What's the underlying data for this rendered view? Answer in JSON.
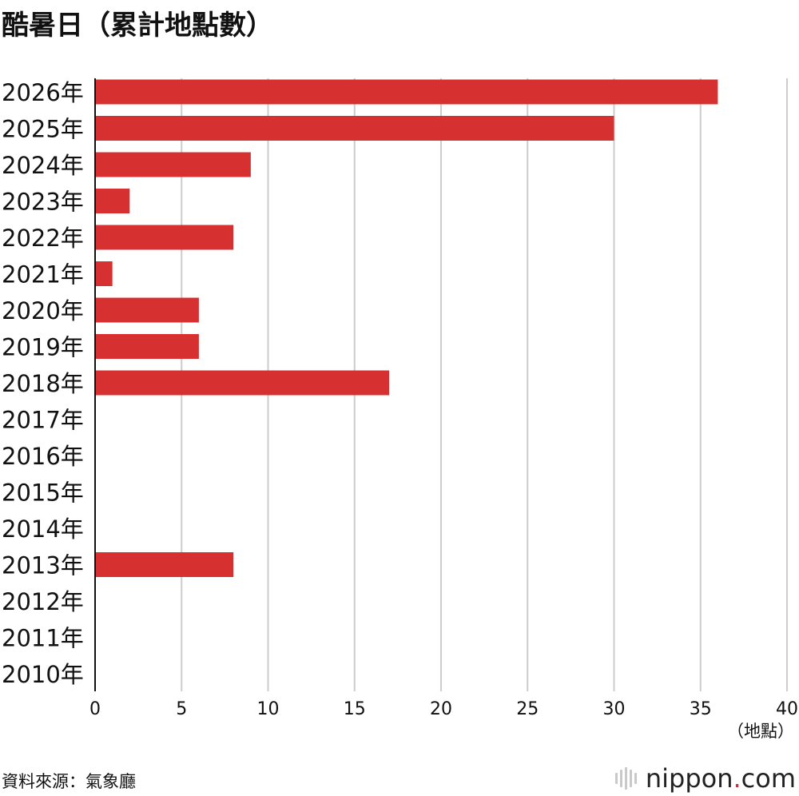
{
  "chart_data": {
    "type": "bar",
    "orientation": "horizontal",
    "title": "酷暑日（累計地點數）",
    "categories": [
      "2026年",
      "2025年",
      "2024年",
      "2023年",
      "2022年",
      "2021年",
      "2020年",
      "2019年",
      "2018年",
      "2017年",
      "2016年",
      "2015年",
      "2014年",
      "2013年",
      "2012年",
      "2011年",
      "2010年"
    ],
    "values": [
      36,
      30,
      9,
      2,
      8,
      1,
      6,
      6,
      17,
      0,
      0,
      0,
      0,
      8,
      0,
      0,
      0
    ],
    "xlim": [
      0,
      40
    ],
    "xticks": [
      "0",
      "5",
      "10",
      "15",
      "20",
      "25",
      "30",
      "35",
      "40"
    ],
    "xunit": "（地點）",
    "grid": true,
    "bar_color": "#d63031",
    "grid_color": "#cccccc"
  },
  "footer": {
    "source": "資料來源：氣象廳",
    "brand_name": "nippon",
    "brand_dot": ".",
    "brand_tld": "com"
  }
}
